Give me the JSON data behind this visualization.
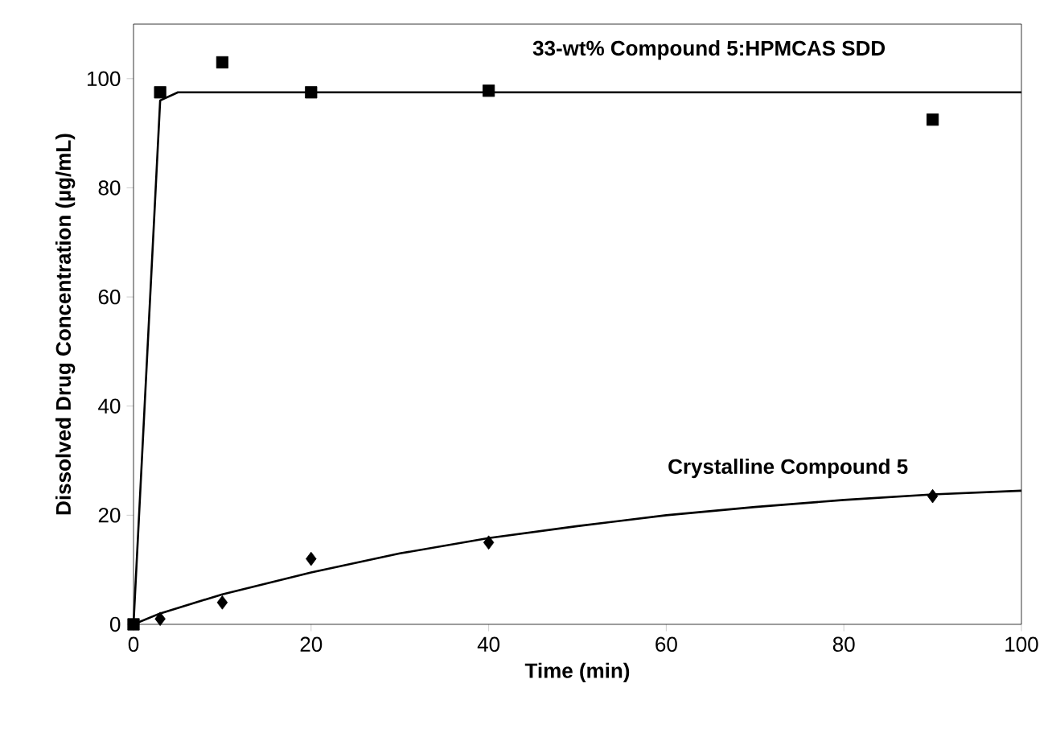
{
  "chart_data": {
    "type": "scatter",
    "xlabel": "Time (min)",
    "ylabel": "Dissolved Drug Concentration (µg/mL)",
    "xlim": [
      0,
      100
    ],
    "ylim": [
      0,
      110
    ],
    "xticks": [
      0,
      20,
      40,
      60,
      80,
      100
    ],
    "yticks": [
      0,
      20,
      40,
      60,
      80,
      100
    ],
    "series": [
      {
        "type": "line",
        "marker": "none",
        "color": "#000000",
        "x": [
          0,
          3,
          5,
          100
        ],
        "values": [
          0,
          96,
          97.5,
          97.5
        ]
      },
      {
        "type": "line",
        "marker": "none",
        "color": "#000000",
        "x": [
          0,
          3,
          10,
          20,
          30,
          40,
          50,
          60,
          70,
          80,
          90,
          100
        ],
        "values": [
          0,
          2,
          5.5,
          9.5,
          13,
          15.8,
          18,
          20,
          21.5,
          22.8,
          23.8,
          24.5
        ]
      },
      {
        "name": "33-wt% Compound 5:HPMCAS SDD",
        "marker": "square",
        "color": "#000000",
        "x": [
          0,
          3,
          10,
          20,
          40,
          90
        ],
        "values": [
          0,
          97.5,
          103,
          97.5,
          97.8,
          92.5
        ]
      },
      {
        "name": "Crystalline Compound 5",
        "marker": "diamond",
        "color": "#000000",
        "x": [
          3,
          10,
          20,
          40,
          90
        ],
        "values": [
          1,
          4,
          12,
          15,
          23.5
        ]
      }
    ]
  }
}
